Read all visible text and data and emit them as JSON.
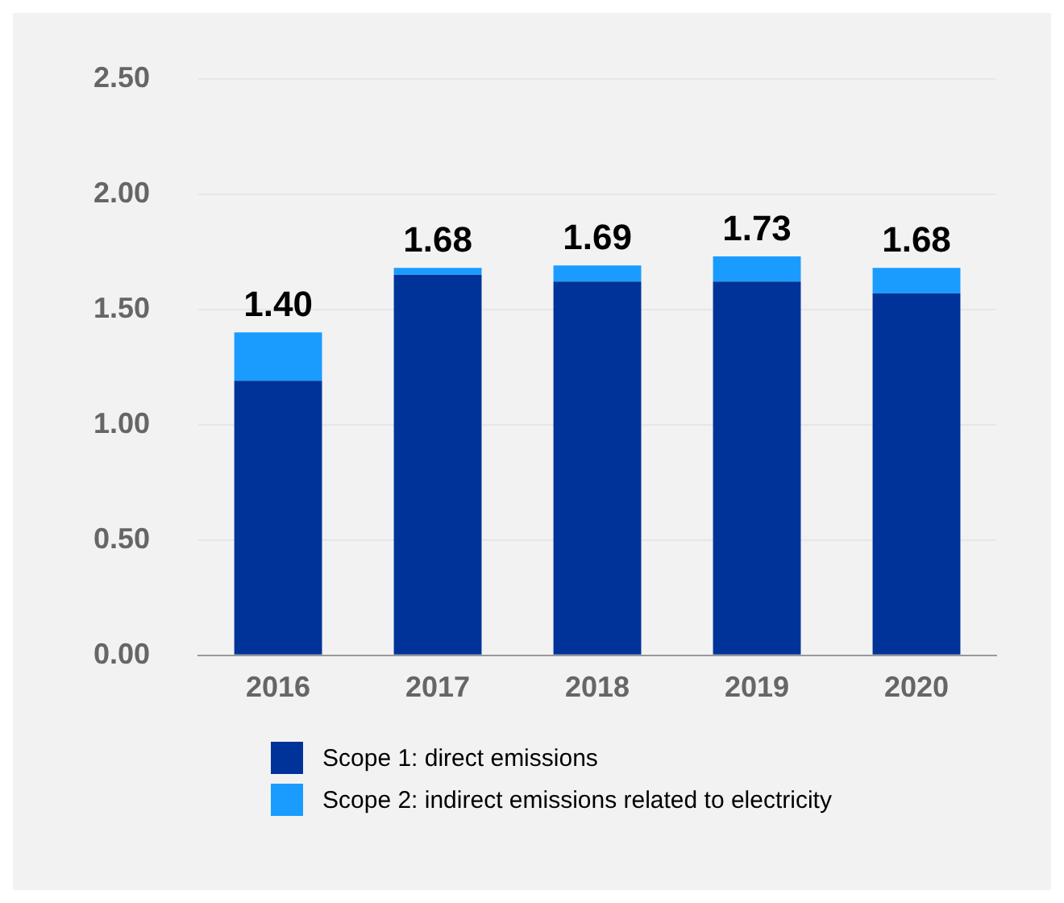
{
  "chart_data": {
    "type": "bar",
    "stacked": true,
    "categories": [
      "2016",
      "2017",
      "2018",
      "2019",
      "2020"
    ],
    "series": [
      {
        "name": "Scope 1: direct emissions",
        "color": "#003399",
        "values": [
          1.19,
          1.65,
          1.62,
          1.62,
          1.57
        ]
      },
      {
        "name": "Scope 2: indirect emissions related to electricity",
        "color": "#1a9cff",
        "values": [
          0.21,
          0.03,
          0.07,
          0.11,
          0.11
        ]
      }
    ],
    "totals": [
      "1.40",
      "1.68",
      "1.69",
      "1.73",
      "1.68"
    ],
    "ylim": [
      0,
      2.5
    ],
    "yticks": [
      {
        "value": 0,
        "label": "0.00"
      },
      {
        "value": 0.5,
        "label": "0.50"
      },
      {
        "value": 1,
        "label": "1.00"
      },
      {
        "value": 1.5,
        "label": "1.50"
      },
      {
        "value": 2,
        "label": "2.00"
      },
      {
        "value": 2.5,
        "label": "2.50"
      }
    ],
    "grid": "y",
    "legend": "bottom"
  }
}
